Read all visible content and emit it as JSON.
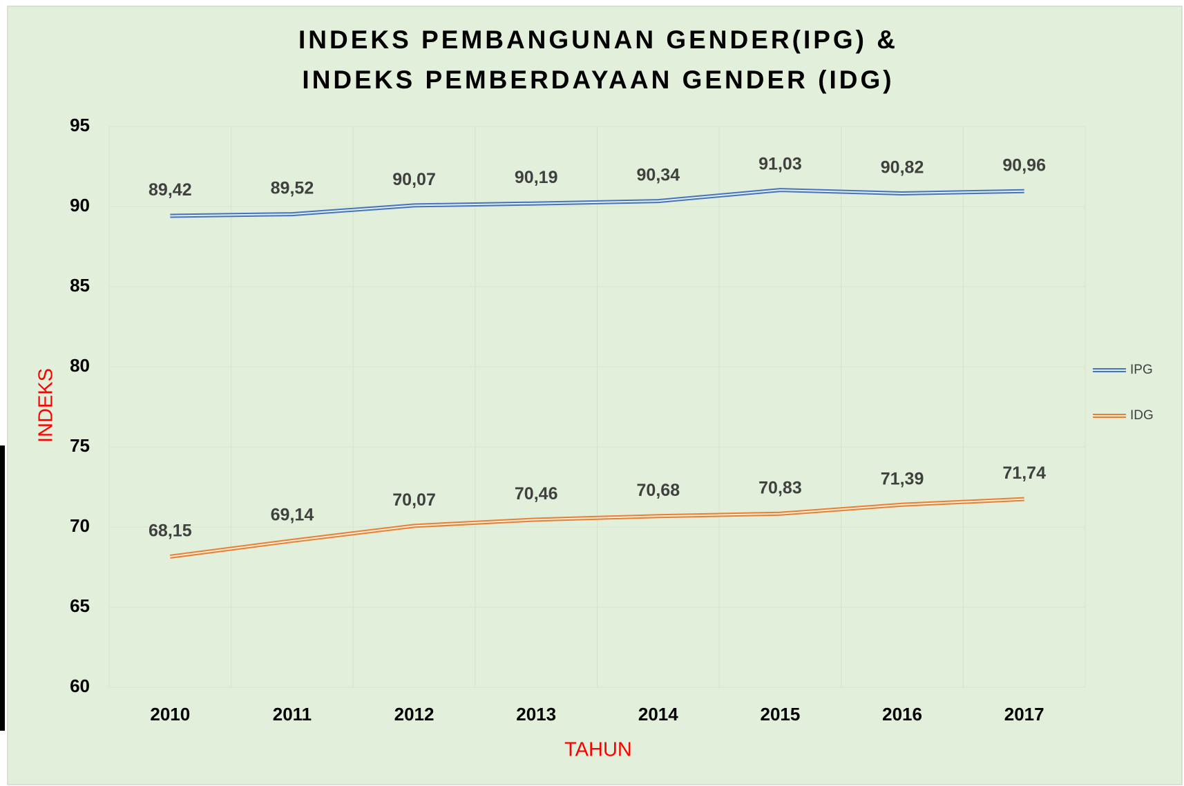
{
  "chart_data": {
    "type": "line",
    "title": [
      "INDEKS PEMBANGUNAN GENDER(IPG) &",
      "INDEKS PEMBERDAYAAN GENDER (IDG)"
    ],
    "x_label": "TAHUN",
    "y_label": "INDEKS",
    "categories": [
      "2010",
      "2011",
      "2012",
      "2013",
      "2014",
      "2015",
      "2016",
      "2017"
    ],
    "series": [
      {
        "name": "IPG",
        "color": "#4472c4",
        "values": [
          89.42,
          89.52,
          90.07,
          90.19,
          90.34,
          91.03,
          90.82,
          90.96
        ],
        "value_labels": [
          "89,42",
          "89,52",
          "90,07",
          "90,19",
          "90,34",
          "91,03",
          "90,82",
          "90,96"
        ]
      },
      {
        "name": "IDG",
        "color": "#ed7d31",
        "values": [
          68.15,
          69.14,
          70.07,
          70.46,
          70.68,
          70.83,
          71.39,
          71.74
        ],
        "value_labels": [
          "68,15",
          "69,14",
          "70,07",
          "70,46",
          "70,68",
          "70,83",
          "71,39",
          "71,74"
        ]
      }
    ],
    "ylim": [
      60,
      95
    ],
    "yticks": [
      60,
      65,
      70,
      75,
      80,
      85,
      90,
      95
    ],
    "grid": true,
    "legend": "right"
  }
}
